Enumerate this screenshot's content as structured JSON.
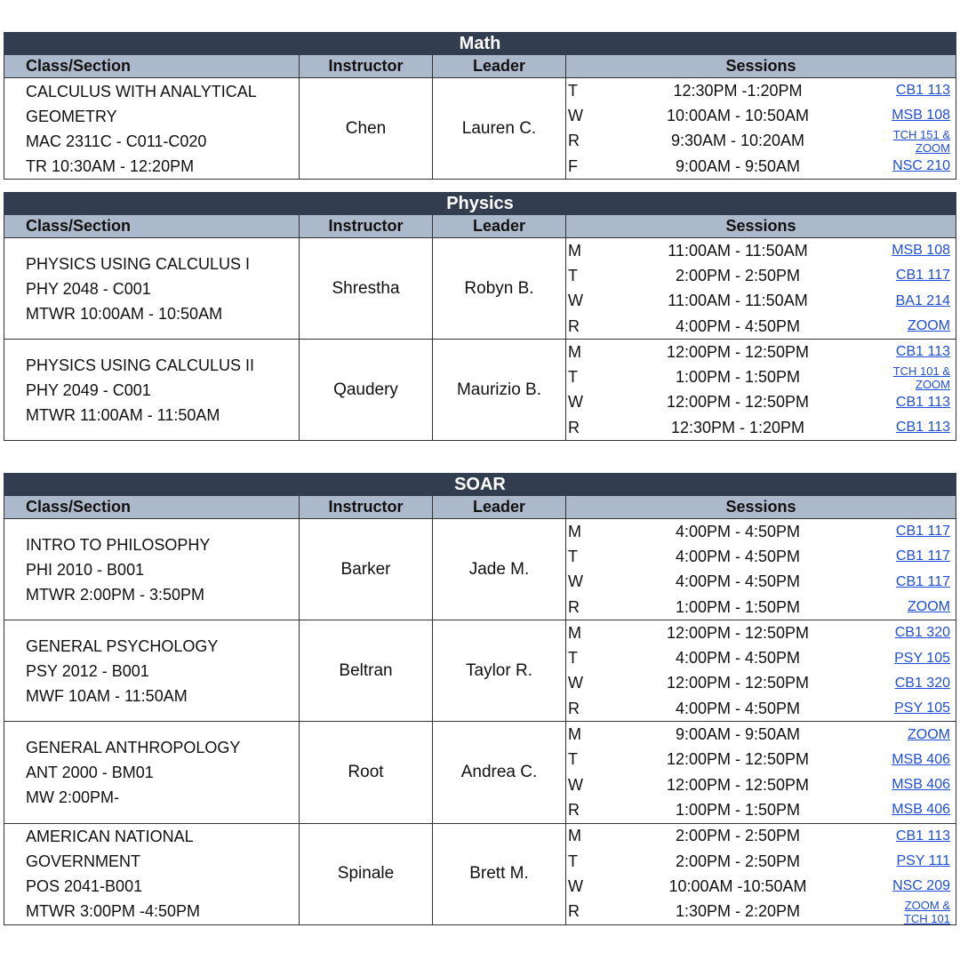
{
  "headers": {
    "class": "Class/Section",
    "instructor": "Instructor",
    "leader": "Leader",
    "sessions": "Sessions"
  },
  "sections": [
    {
      "subject": "Math",
      "courses": [
        {
          "lines": [
            "CALCULUS WITH ANALYTICAL",
            "GEOMETRY",
            "MAC 2311C - C011-C020",
            "TR 10:30AM - 12:20PM"
          ],
          "instructor": "Chen",
          "leader": "Lauren C.",
          "sessions": [
            {
              "day": "T",
              "time": "12:30PM -1:20PM",
              "room": "CB1 113"
            },
            {
              "day": "W",
              "time": "10:00AM - 10:50AM",
              "room": "MSB 108"
            },
            {
              "day": "R",
              "time": "9:30AM - 10:20AM",
              "room": "TCH 151 & ZOOM"
            },
            {
              "day": "F",
              "time": "9:00AM - 9:50AM",
              "room": "NSC 210"
            }
          ]
        }
      ]
    },
    {
      "subject": "Physics",
      "courses": [
        {
          "lines": [
            "PHYSICS USING CALCULUS I",
            "PHY 2048 - C001",
            "MTWR 10:00AM - 10:50AM"
          ],
          "instructor": "Shrestha",
          "leader": "Robyn B.",
          "sessions": [
            {
              "day": "M",
              "time": "11:00AM - 11:50AM",
              "room": "MSB 108"
            },
            {
              "day": "T",
              "time": "2:00PM - 2:50PM",
              "room": "CB1 117"
            },
            {
              "day": "W",
              "time": "11:00AM - 11:50AM",
              "room": "BA1 214"
            },
            {
              "day": "R",
              "time": "4:00PM - 4:50PM",
              "room": "ZOOM"
            }
          ]
        },
        {
          "lines": [
            "PHYSICS USING CALCULUS II",
            "PHY 2049 - C001",
            "MTWR 11:00AM - 11:50AM"
          ],
          "instructor": "Qaudery",
          "leader": "Maurizio B.",
          "sessions": [
            {
              "day": "M",
              "time": "12:00PM - 12:50PM",
              "room": "CB1 113"
            },
            {
              "day": "T",
              "time": "1:00PM - 1:50PM",
              "room": "TCH 101 & ZOOM"
            },
            {
              "day": "W",
              "time": "12:00PM - 12:50PM",
              "room": "CB1 113"
            },
            {
              "day": "R",
              "time": "12:30PM - 1:20PM",
              "room": "CB1 113"
            }
          ]
        }
      ]
    },
    {
      "subject": "SOAR",
      "courses": [
        {
          "lines": [
            "INTRO TO PHILOSOPHY",
            "PHI 2010 - B001",
            "MTWR 2:00PM - 3:50PM"
          ],
          "instructor": "Barker",
          "leader": "Jade M.",
          "sessions": [
            {
              "day": "M",
              "time": "4:00PM - 4:50PM",
              "room": "CB1 117"
            },
            {
              "day": "T",
              "time": "4:00PM - 4:50PM",
              "room": "CB1 117"
            },
            {
              "day": "W",
              "time": "4:00PM - 4:50PM",
              "room": "CB1 117"
            },
            {
              "day": "R",
              "time": "1:00PM - 1:50PM",
              "room": "ZOOM"
            }
          ]
        },
        {
          "lines": [
            "GENERAL PSYCHOLOGY",
            "PSY 2012 - B001",
            "MWF 10AM - 11:50AM"
          ],
          "instructor": "Beltran",
          "leader": "Taylor R.",
          "sessions": [
            {
              "day": "M",
              "time": "12:00PM - 12:50PM",
              "room": "CB1 320"
            },
            {
              "day": "T",
              "time": "4:00PM - 4:50PM",
              "room": "PSY 105"
            },
            {
              "day": "W",
              "time": "12:00PM - 12:50PM",
              "room": "CB1 320"
            },
            {
              "day": "R",
              "time": "4:00PM - 4:50PM",
              "room": "PSY 105"
            }
          ]
        },
        {
          "lines": [
            "GENERAL ANTHROPOLOGY",
            "ANT 2000 - BM01",
            "MW 2:00PM-"
          ],
          "instructor": "Root",
          "leader": "Andrea C.",
          "sessions": [
            {
              "day": "M",
              "time": "9:00AM - 9:50AM",
              "room": "ZOOM"
            },
            {
              "day": "T",
              "time": "12:00PM - 12:50PM",
              "room": "MSB 406"
            },
            {
              "day": "W",
              "time": "12:00PM - 12:50PM",
              "room": "MSB 406"
            },
            {
              "day": "R",
              "time": "1:00PM - 1:50PM",
              "room": "MSB 406"
            }
          ]
        },
        {
          "lines": [
            "AMERICAN NATIONAL",
            "GOVERNMENT",
            "POS 2041-B001",
            "MTWR 3:00PM -4:50PM"
          ],
          "instructor": "Spinale",
          "leader": "Brett M.",
          "sessions": [
            {
              "day": "M",
              "time": "2:00PM - 2:50PM",
              "room": "CB1 113"
            },
            {
              "day": "T",
              "time": "2:00PM - 2:50PM",
              "room": "PSY 111"
            },
            {
              "day": "W",
              "time": "10:00AM -10:50AM",
              "room": "NSC 209"
            },
            {
              "day": "R",
              "time": "1:30PM - 2:20PM",
              "room": "ZOOM & TCH 101"
            }
          ]
        }
      ]
    }
  ]
}
